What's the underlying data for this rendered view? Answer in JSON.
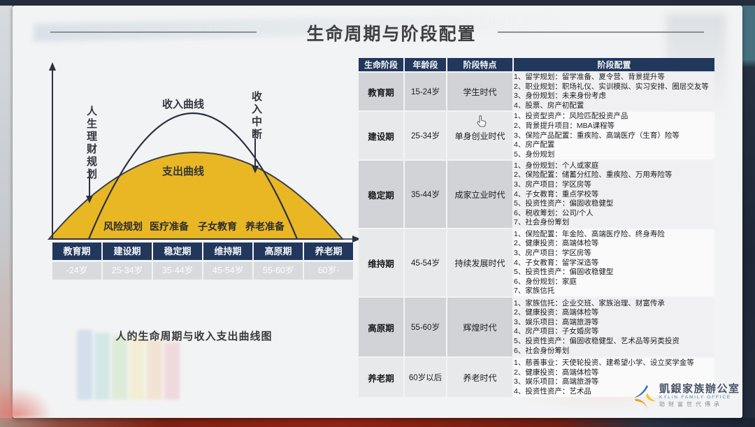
{
  "title": "生命周期与阶段配置",
  "chart": {
    "y_axis_label": "人生理财规划",
    "income_curve_label": "收入曲线",
    "income_break_label": "收入中断",
    "expense_curve_label": "支出曲线",
    "phase_notes": [
      "风险规划",
      "医疗准备",
      "子女教育",
      "养老准备"
    ],
    "stages": [
      "教育期",
      "建设期",
      "稳定期",
      "维持期",
      "高原期",
      "养老期"
    ],
    "ages": [
      "-24岁",
      "25-34岁",
      "35-44岁",
      "45-54岁",
      "55-60岁",
      "60岁-"
    ],
    "caption": "人的生命周期与收入支出曲线图",
    "colors": {
      "expense_fill": "#e9b724",
      "curve": "#2c3140",
      "header_bg": "#21375c"
    }
  },
  "table": {
    "headers": [
      "生命阶段",
      "年龄段",
      "阶段特点",
      "阶段配置"
    ],
    "rows": [
      {
        "stage": "教育期",
        "age": "15-24岁",
        "feature": "学生时代",
        "items": [
          "1、留学规划：留学准备、夏令营、背景提升等",
          "2、职业规划：职场礼仪、实训模拟、实习安排、圈层交友等",
          "3、身份规划：未来身份考虑",
          "4、股票、房产初配置"
        ]
      },
      {
        "stage": "建设期",
        "age": "25-34岁",
        "feature": "单身创业时代",
        "items": [
          "1、投资型资产：风险匹配投资产品",
          "2、背景提升项目：MBA课程等",
          "3、保险产品配置：重疾险、高端医疗（生育）险等",
          "4、房产配置",
          "5、身份规划"
        ]
      },
      {
        "stage": "稳定期",
        "age": "35-44岁",
        "feature": "成家立业时代",
        "items": [
          "1、身份规划：个人或家庭",
          "2、保险配置：储蓄分红险、重疾险、万用寿险等",
          "3、房产项目：学区房等",
          "4、子女教育：重点学校等",
          "5、投资性资产：偏固收稳健型",
          "6、税收筹划：公司/个人",
          "7、社会身份筹划"
        ]
      },
      {
        "stage": "维持期",
        "age": "45-54岁",
        "feature": "持续发展时代",
        "items": [
          "1、保险配置：年金险、高端医疗险、终身寿险",
          "2、健康投资：高端体检等",
          "3、房产项目：学区房等",
          "4、子女教育：留学深造等",
          "5、投资性资产：偏固收稳健型",
          "6、身份规划：家庭",
          "7、家族信托"
        ]
      },
      {
        "stage": "高原期",
        "age": "55-60岁",
        "feature": "辉煌时代",
        "items": [
          "1、家族信托：企业交班、家族治理、财富传承",
          "2、健康投资：高端体检等",
          "3、娱乐项目：高端旅游等",
          "4、房产项目：子女婚房等",
          "5、投资性资产：偏固收稳健型、艺术品等另类投资",
          "6、社会身份筹划"
        ]
      },
      {
        "stage": "养老期",
        "age": "60岁以后",
        "feature": "养老时代",
        "items": [
          "1、慈善事业：天使轮投资、建希望小学、设立奖学金等",
          "2、健康投资：高端体检等",
          "3、娱乐项目：高端旅游等",
          "4、投资性资产：艺术品"
        ]
      }
    ]
  },
  "logo": {
    "name_cn": "凱銀家族辦公室",
    "name_en": "KYLIN FAMILY OFFICE",
    "tagline": "助財富世代傳承"
  }
}
